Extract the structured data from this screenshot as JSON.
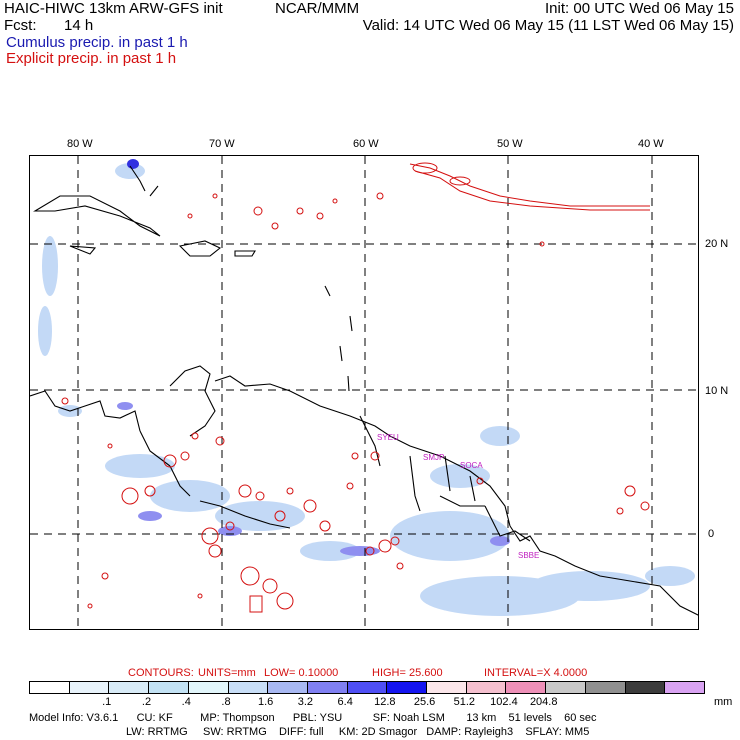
{
  "header": {
    "title": "HAIC-HIWC 13km ARW-GFS init",
    "org": "NCAR/MMM",
    "init": "Init: 00 UTC Wed 06 May 15",
    "fcst_label": "Fcst:",
    "fcst_value": "14 h",
    "valid": "Valid: 14 UTC Wed 06 May 15 (11 LST Wed 06 May 15)",
    "legend_cumulus": "Cumulus precip. in past 1 h",
    "legend_explicit": "Explicit precip. in past 1 h"
  },
  "map": {
    "lon_labels": [
      "80 W",
      "70 W",
      "60 W",
      "50 W",
      "40 W"
    ],
    "lat_labels": [
      "20 N",
      "10 N",
      "0"
    ],
    "stations": [
      "SYEU",
      "SMJP",
      "SOCA",
      "SBBE"
    ]
  },
  "contours": {
    "label": "CONTOURS:",
    "units": "UNITS=mm",
    "low": "LOW= 0.10000",
    "high": "HIGH= 25.600",
    "interval": "INTERVAL=X 4.0000"
  },
  "colorbar": {
    "colors": [
      "#ffffff",
      "#e8f3fb",
      "#d8ebf7",
      "#c3e2f4",
      "#e2f6fb",
      "#c8def7",
      "#a8b8f2",
      "#8080f2",
      "#4f4ff4",
      "#1414f0",
      "#fbe6ea",
      "#f5c0cf",
      "#ee90b8",
      "#c8c8c8",
      "#909090",
      "#3c3c3c",
      "#d9a3f2"
    ],
    "labels": [
      ".1",
      ".2",
      ".4",
      ".8",
      "1.6",
      "3.2",
      "6.4",
      "12.8",
      "25.6",
      "51.2",
      "102.4",
      "204.8"
    ],
    "unit": "mm"
  },
  "footer": {
    "line1": "Model Info: V3.6.1      CU: KF         MP: Thompson      PBL: YSU          SF: Noah LSM       13 km    51 levels    60 sec",
    "line2": "LW: RRTMG     SW: RRTMG    DIFF: full     KM: 2D Smagor   DAMP: Rayleigh3    SFLAY: MM5"
  }
}
